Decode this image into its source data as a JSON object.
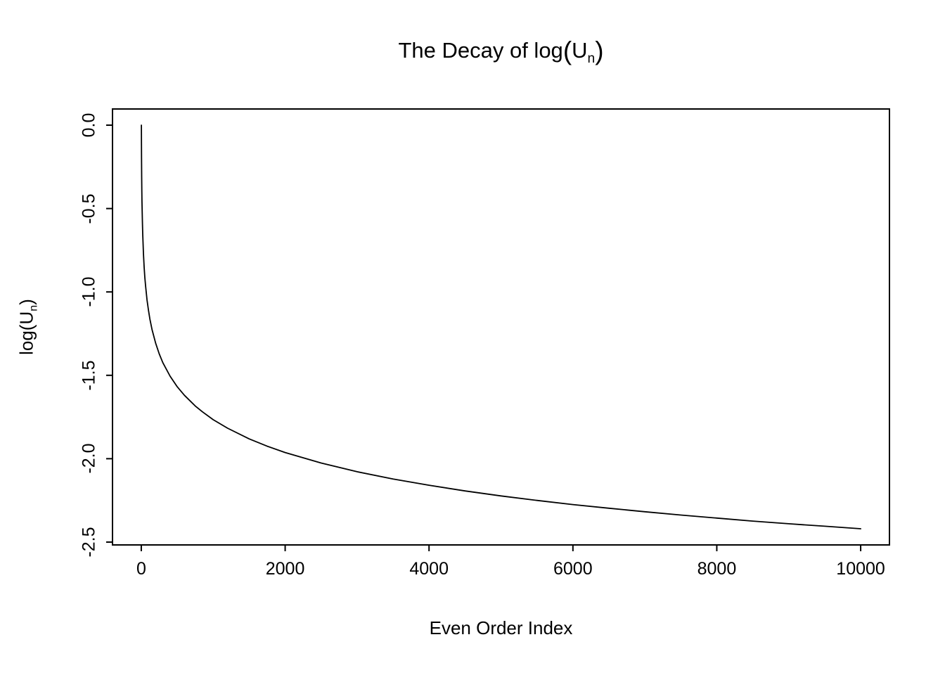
{
  "chart_data": {
    "type": "line",
    "title": "The Decay of log(Un)",
    "title_parts": {
      "prefix": "The Decay of log",
      "open_paren": "(",
      "base": "U",
      "subscript": "n",
      "close_paren": ")"
    },
    "xlabel": "Even Order Index",
    "ylabel_parts": {
      "prefix": "log",
      "open_paren": "(",
      "base": "U",
      "subscript": "n",
      "close_paren": ")"
    },
    "xlim": [
      -400,
      10400
    ],
    "ylim": [
      -2.517,
      0.097
    ],
    "x_ticks": [
      0,
      2000,
      4000,
      6000,
      8000,
      10000
    ],
    "x_tick_labels": [
      "0",
      "2000",
      "4000",
      "6000",
      "8000",
      "10000"
    ],
    "y_ticks": [
      0,
      -0.5,
      -1.0,
      -1.5,
      -2.0,
      -2.5
    ],
    "y_tick_labels": [
      "0.0",
      "-0.5",
      "-1.0",
      "-1.5",
      "-2.0",
      "-2.5"
    ],
    "grid": false,
    "legend": "none",
    "line_color": "#000000",
    "series": [
      {
        "name": "log(Un)",
        "points": [
          [
            2,
            0.0
          ],
          [
            3,
            -0.115
          ],
          [
            4,
            -0.197
          ],
          [
            6,
            -0.312
          ],
          [
            8,
            -0.394
          ],
          [
            10,
            -0.457
          ],
          [
            16,
            -0.591
          ],
          [
            20,
            -0.654
          ],
          [
            30,
            -0.769
          ],
          [
            40,
            -0.851
          ],
          [
            50,
            -0.914
          ],
          [
            60,
            -0.966
          ],
          [
            80,
            -1.048
          ],
          [
            100,
            -1.111
          ],
          [
            120,
            -1.163
          ],
          [
            150,
            -1.227
          ],
          [
            200,
            -1.308
          ],
          [
            250,
            -1.372
          ],
          [
            300,
            -1.424
          ],
          [
            400,
            -1.505
          ],
          [
            500,
            -1.569
          ],
          [
            600,
            -1.62
          ],
          [
            750,
            -1.684
          ],
          [
            850,
            -1.719
          ],
          [
            1000,
            -1.766
          ],
          [
            1200,
            -1.817
          ],
          [
            1500,
            -1.881
          ],
          [
            1750,
            -1.925
          ],
          [
            2000,
            -1.963
          ],
          [
            2500,
            -2.026
          ],
          [
            3000,
            -2.078
          ],
          [
            3500,
            -2.122
          ],
          [
            4000,
            -2.159
          ],
          [
            4500,
            -2.193
          ],
          [
            5000,
            -2.223
          ],
          [
            5500,
            -2.25
          ],
          [
            6000,
            -2.275
          ],
          [
            6500,
            -2.297
          ],
          [
            7000,
            -2.318
          ],
          [
            7500,
            -2.338
          ],
          [
            8000,
            -2.356
          ],
          [
            8500,
            -2.374
          ],
          [
            9000,
            -2.39
          ],
          [
            9500,
            -2.405
          ],
          [
            10000,
            -2.42
          ]
        ]
      }
    ]
  }
}
